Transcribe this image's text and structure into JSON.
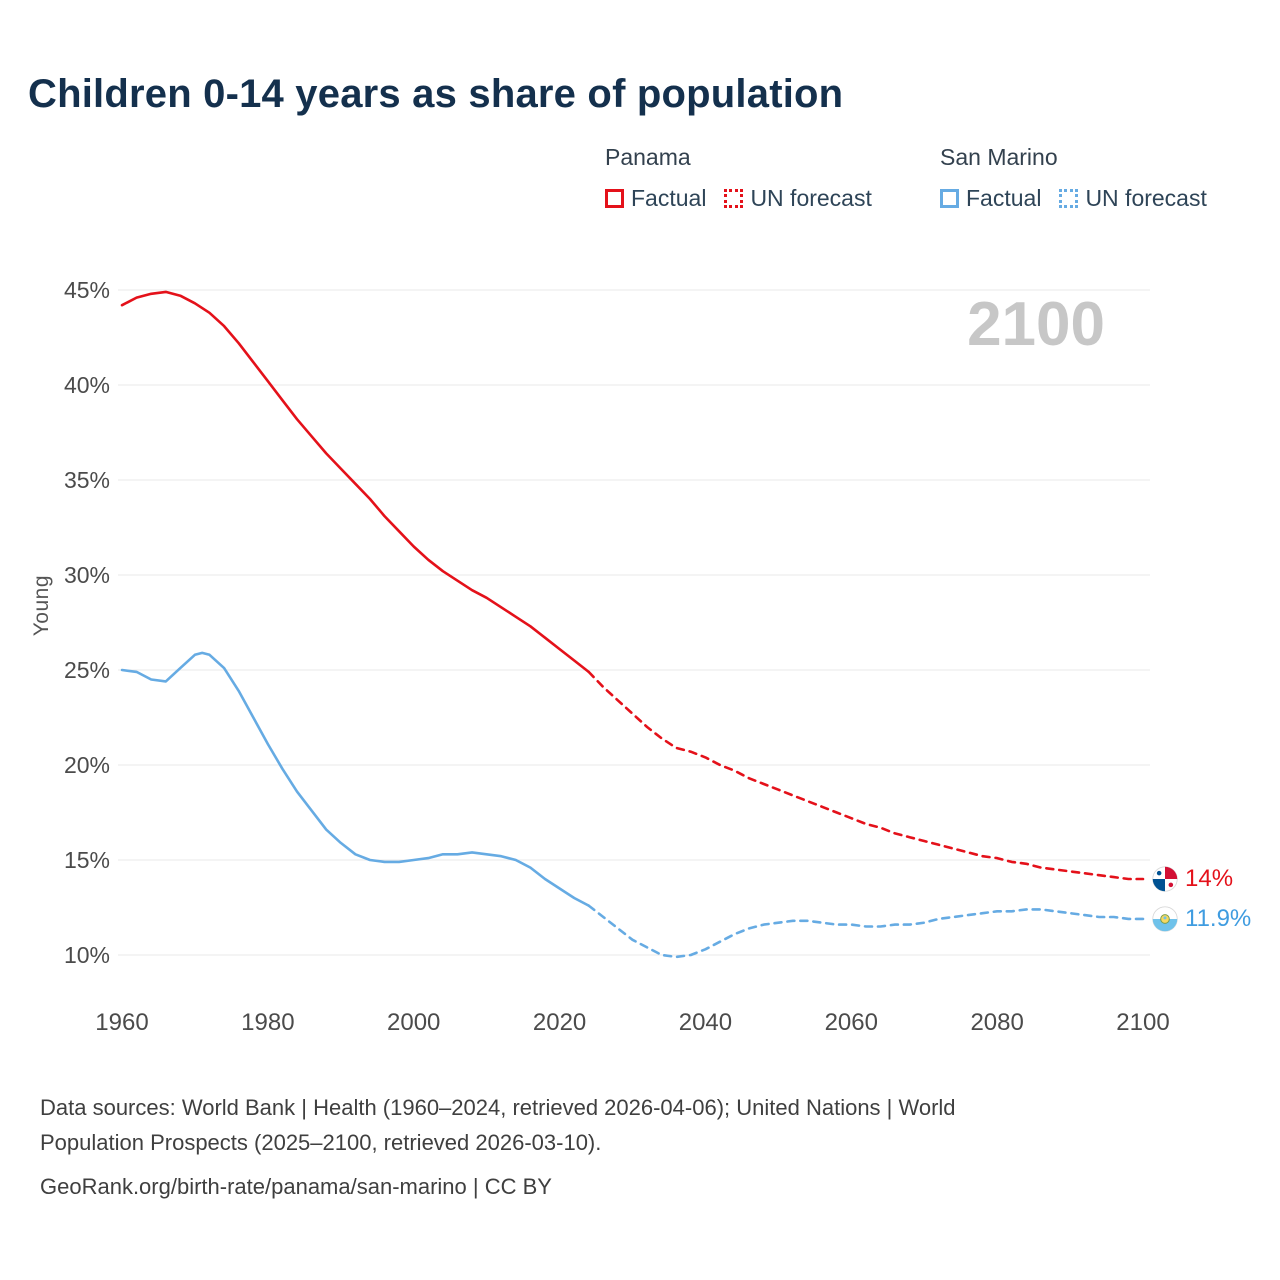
{
  "chart_data": {
    "type": "line",
    "title": "Children 0-14 years as share of population",
    "xlabel": "",
    "ylabel": "Young",
    "xlim": [
      1960,
      2100
    ],
    "ylim": [
      10,
      45
    ],
    "xticks": [
      1960,
      1980,
      2000,
      2020,
      2040,
      2060,
      2080,
      2100
    ],
    "yticks": [
      10,
      15,
      20,
      25,
      30,
      35,
      40,
      45
    ],
    "ytick_suffix": "%",
    "grid": "horizontal",
    "legend_position": "top-right",
    "watermark": "2100",
    "series": [
      {
        "name": "Panama",
        "color": "#e4111a",
        "end_value_label": "14%",
        "segments": [
          {
            "label": "Factual",
            "style": "solid",
            "points": [
              [
                1960,
                44.2
              ],
              [
                1962,
                44.6
              ],
              [
                1964,
                44.8
              ],
              [
                1966,
                44.9
              ],
              [
                1968,
                44.7
              ],
              [
                1970,
                44.3
              ],
              [
                1972,
                43.8
              ],
              [
                1974,
                43.1
              ],
              [
                1976,
                42.2
              ],
              [
                1978,
                41.2
              ],
              [
                1980,
                40.2
              ],
              [
                1982,
                39.2
              ],
              [
                1984,
                38.2
              ],
              [
                1986,
                37.3
              ],
              [
                1988,
                36.4
              ],
              [
                1990,
                35.6
              ],
              [
                1992,
                34.8
              ],
              [
                1994,
                34.0
              ],
              [
                1996,
                33.1
              ],
              [
                1998,
                32.3
              ],
              [
                2000,
                31.5
              ],
              [
                2002,
                30.8
              ],
              [
                2004,
                30.2
              ],
              [
                2006,
                29.7
              ],
              [
                2008,
                29.2
              ],
              [
                2010,
                28.8
              ],
              [
                2012,
                28.3
              ],
              [
                2014,
                27.8
              ],
              [
                2016,
                27.3
              ],
              [
                2018,
                26.7
              ],
              [
                2020,
                26.1
              ],
              [
                2022,
                25.5
              ],
              [
                2024,
                24.9
              ]
            ]
          },
          {
            "label": "UN forecast",
            "style": "dashed",
            "points": [
              [
                2024,
                24.9
              ],
              [
                2026,
                24.1
              ],
              [
                2028,
                23.4
              ],
              [
                2030,
                22.7
              ],
              [
                2032,
                22.0
              ],
              [
                2034,
                21.4
              ],
              [
                2036,
                20.9
              ],
              [
                2038,
                20.7
              ],
              [
                2040,
                20.4
              ],
              [
                2042,
                20.0
              ],
              [
                2044,
                19.7
              ],
              [
                2046,
                19.3
              ],
              [
                2048,
                19.0
              ],
              [
                2050,
                18.7
              ],
              [
                2052,
                18.4
              ],
              [
                2054,
                18.1
              ],
              [
                2056,
                17.8
              ],
              [
                2058,
                17.5
              ],
              [
                2060,
                17.2
              ],
              [
                2062,
                16.9
              ],
              [
                2064,
                16.7
              ],
              [
                2066,
                16.4
              ],
              [
                2068,
                16.2
              ],
              [
                2070,
                16.0
              ],
              [
                2072,
                15.8
              ],
              [
                2074,
                15.6
              ],
              [
                2076,
                15.4
              ],
              [
                2078,
                15.2
              ],
              [
                2080,
                15.1
              ],
              [
                2082,
                14.9
              ],
              [
                2084,
                14.8
              ],
              [
                2086,
                14.6
              ],
              [
                2088,
                14.5
              ],
              [
                2090,
                14.4
              ],
              [
                2092,
                14.3
              ],
              [
                2094,
                14.2
              ],
              [
                2096,
                14.1
              ],
              [
                2098,
                14.0
              ],
              [
                2100,
                14.0
              ]
            ]
          }
        ]
      },
      {
        "name": "San Marino",
        "color": "#66abe3",
        "end_value_label": "11.9%",
        "segments": [
          {
            "label": "Factual",
            "style": "solid",
            "points": [
              [
                1960,
                25.0
              ],
              [
                1962,
                24.9
              ],
              [
                1964,
                24.5
              ],
              [
                1966,
                24.4
              ],
              [
                1968,
                25.1
              ],
              [
                1970,
                25.8
              ],
              [
                1971,
                25.9
              ],
              [
                1972,
                25.8
              ],
              [
                1974,
                25.1
              ],
              [
                1976,
                23.9
              ],
              [
                1978,
                22.5
              ],
              [
                1980,
                21.1
              ],
              [
                1982,
                19.8
              ],
              [
                1984,
                18.6
              ],
              [
                1986,
                17.6
              ],
              [
                1988,
                16.6
              ],
              [
                1990,
                15.9
              ],
              [
                1992,
                15.3
              ],
              [
                1994,
                15.0
              ],
              [
                1996,
                14.9
              ],
              [
                1998,
                14.9
              ],
              [
                2000,
                15.0
              ],
              [
                2002,
                15.1
              ],
              [
                2004,
                15.3
              ],
              [
                2006,
                15.3
              ],
              [
                2008,
                15.4
              ],
              [
                2010,
                15.3
              ],
              [
                2012,
                15.2
              ],
              [
                2014,
                15.0
              ],
              [
                2016,
                14.6
              ],
              [
                2018,
                14.0
              ],
              [
                2020,
                13.5
              ],
              [
                2022,
                13.0
              ],
              [
                2024,
                12.6
              ]
            ]
          },
          {
            "label": "UN forecast",
            "style": "dashed",
            "points": [
              [
                2024,
                12.6
              ],
              [
                2026,
                12.0
              ],
              [
                2028,
                11.4
              ],
              [
                2030,
                10.8
              ],
              [
                2032,
                10.4
              ],
              [
                2034,
                10.0
              ],
              [
                2036,
                9.9
              ],
              [
                2038,
                10.0
              ],
              [
                2040,
                10.3
              ],
              [
                2042,
                10.7
              ],
              [
                2044,
                11.1
              ],
              [
                2046,
                11.4
              ],
              [
                2048,
                11.6
              ],
              [
                2050,
                11.7
              ],
              [
                2052,
                11.8
              ],
              [
                2054,
                11.8
              ],
              [
                2056,
                11.7
              ],
              [
                2058,
                11.6
              ],
              [
                2060,
                11.6
              ],
              [
                2062,
                11.5
              ],
              [
                2064,
                11.5
              ],
              [
                2066,
                11.6
              ],
              [
                2068,
                11.6
              ],
              [
                2070,
                11.7
              ],
              [
                2072,
                11.9
              ],
              [
                2074,
                12.0
              ],
              [
                2076,
                12.1
              ],
              [
                2078,
                12.2
              ],
              [
                2080,
                12.3
              ],
              [
                2082,
                12.3
              ],
              [
                2084,
                12.4
              ],
              [
                2086,
                12.4
              ],
              [
                2088,
                12.3
              ],
              [
                2090,
                12.2
              ],
              [
                2092,
                12.1
              ],
              [
                2094,
                12.0
              ],
              [
                2096,
                12.0
              ],
              [
                2098,
                11.9
              ],
              [
                2100,
                11.9
              ]
            ]
          }
        ]
      }
    ]
  },
  "footer": {
    "line1": "Data sources: World Bank | Health (1960–2024, retrieved 2026-04-06); United Nations | World",
    "line2": "Population Prospects (2025–2100, retrieved 2026-03-10).",
    "line3": "GeoRank.org/birth-rate/panama/san-marino | CC BY"
  }
}
